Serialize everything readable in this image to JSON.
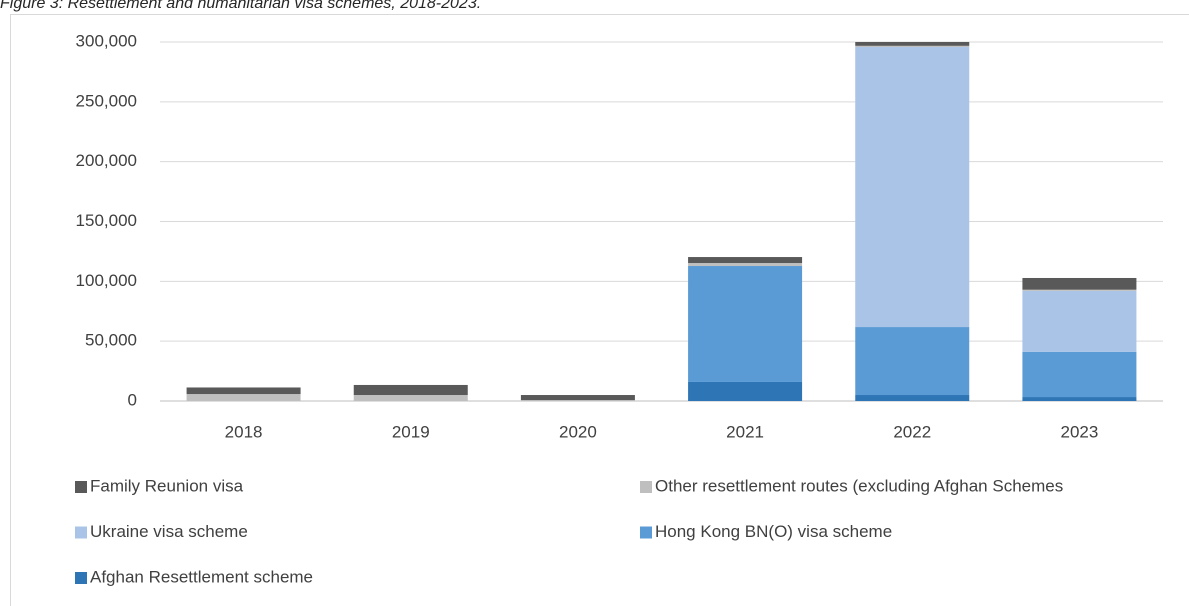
{
  "chart_data": {
    "type": "bar",
    "stacked": true,
    "title": "Figure 3: Resettlement and humanitarian visa schemes, 2018-2023.",
    "categories": [
      "2018",
      "2019",
      "2020",
      "2021",
      "2022",
      "2023"
    ],
    "series": [
      {
        "name": "Family Reunion visa",
        "color": "#595959",
        "values": [
          5500,
          8400,
          4200,
          5000,
          3200,
          9800
        ]
      },
      {
        "name": "Other resettlement routes (excluding Afghan Schemes",
        "color": "#bfbfbf",
        "values": [
          5800,
          5000,
          800,
          2500,
          1000,
          1000
        ]
      },
      {
        "name": "Ukraine visa scheme",
        "color": "#a9c4e6",
        "values": [
          0,
          0,
          0,
          0,
          234000,
          51000
        ]
      },
      {
        "name": "Hong Kong BN(O) visa scheme",
        "color": "#5b9bd5",
        "values": [
          0,
          0,
          0,
          96900,
          56800,
          37700
        ]
      },
      {
        "name": "Afghan Resettlement scheme",
        "color": "#2e75b6",
        "values": [
          0,
          0,
          0,
          15900,
          5000,
          3300
        ]
      }
    ],
    "ylim": [
      0,
      300000
    ],
    "yticks": [
      0,
      {
        "value": 50000,
        "label": "50,000"
      },
      {
        "value": 100000,
        "label": "100,000"
      },
      {
        "value": 150000,
        "label": "150,000"
      },
      {
        "value": 200000,
        "label": "200,000"
      },
      {
        "value": 250000,
        "label": "250,000"
      },
      {
        "value": 300000,
        "label": "300,000"
      }
    ],
    "grid": true
  }
}
